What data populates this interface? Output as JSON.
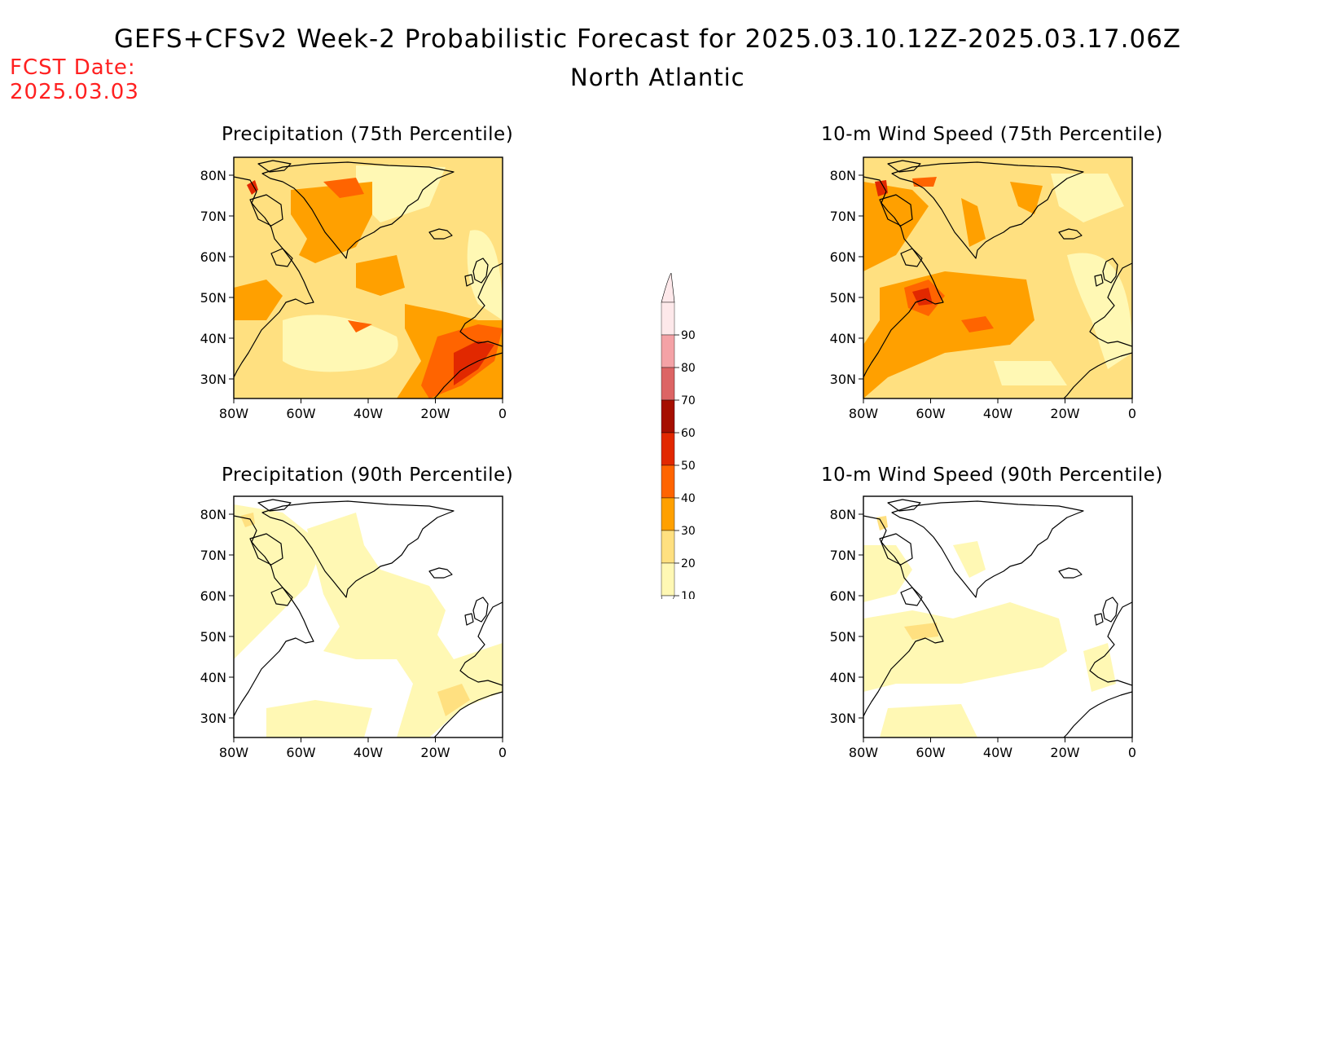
{
  "header": {
    "title": "GEFS+CFSv2 Week-2 Probabilistic Forecast for 2025.03.10.12Z-2025.03.17.06Z",
    "region": "North Atlantic",
    "fcst_label": "FCST Date:",
    "fcst_date": "2025.03.03"
  },
  "panels": [
    {
      "id": "precip75",
      "title": "Precipitation (75th Percentile)"
    },
    {
      "id": "wind75",
      "title": "10-m Wind Speed (75th Percentile)"
    },
    {
      "id": "precip90",
      "title": "Precipitation (90th Percentile)"
    },
    {
      "id": "wind90",
      "title": "10-m Wind Speed (90th Percentile)"
    }
  ],
  "axes": {
    "lat_labels": [
      "80N",
      "70N",
      "60N",
      "50N",
      "40N",
      "30N"
    ],
    "lon_labels": [
      "80W",
      "60W",
      "40W",
      "20W",
      "0"
    ]
  },
  "colorbar": {
    "levels": [
      "90",
      "80",
      "70",
      "60",
      "50",
      "40",
      "30",
      "20",
      "10"
    ],
    "colors": [
      "#fde8ea",
      "#f4a2a6",
      "#dc6464",
      "#a50f00",
      "#e12800",
      "#ff6400",
      "#ffa000",
      "#ffe080",
      "#fff8b4"
    ]
  },
  "shading_colors": {
    "c10": "#fff8b4",
    "c20": "#ffe080",
    "c30": "#ffa000",
    "c40": "#ff6400",
    "c50": "#e12800",
    "c60": "#a50f00"
  }
}
